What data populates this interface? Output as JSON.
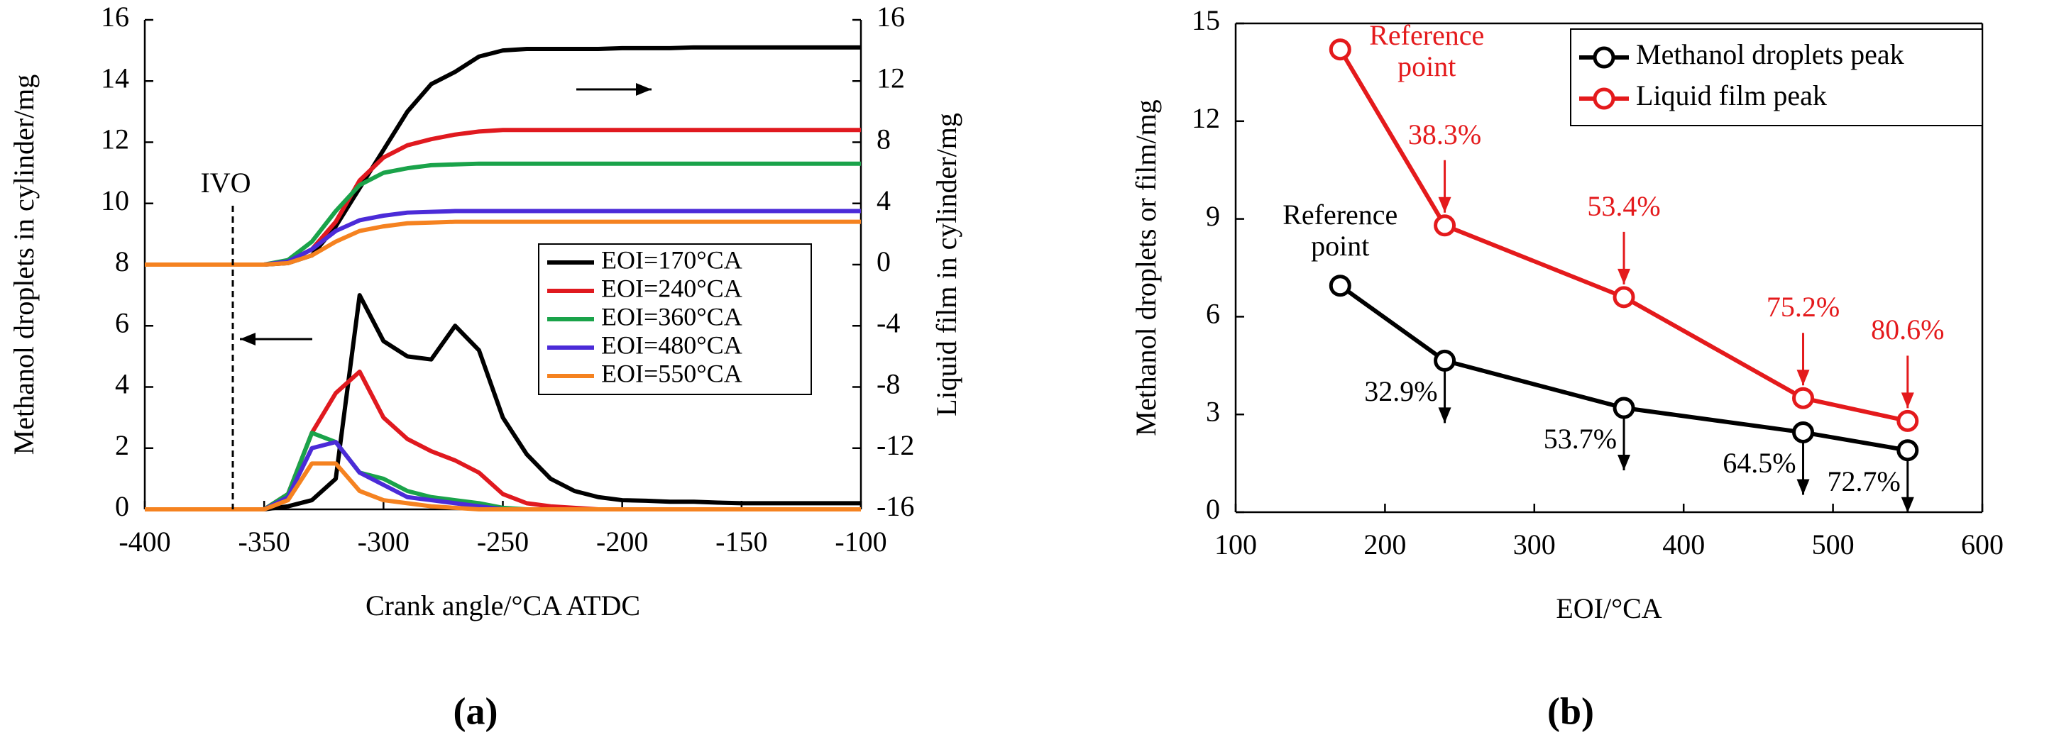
{
  "chart_data": [
    {
      "type": "line",
      "caption": "(a)",
      "x_label": "Crank angle/°CA ATDC",
      "y_label": "Methanol droplets in cylinder/mg",
      "y2_label": "Liquid film in cylinder/mg",
      "annotations": [
        "IVO"
      ],
      "x": [
        -400,
        -390,
        -380,
        -370,
        -360,
        -350,
        -340,
        -330,
        -320,
        -310,
        -300,
        -290,
        -280,
        -270,
        -260,
        -250,
        -240,
        -230,
        -220,
        -210,
        -200,
        -190,
        -180,
        -170,
        -160,
        -150,
        -140,
        -130,
        -120,
        -110,
        -100
      ],
      "xlim": [
        -400,
        -100
      ],
      "xticks": [
        -400,
        -350,
        -300,
        -250,
        -200,
        -150,
        -100
      ],
      "ylim": [
        0,
        16
      ],
      "yticks": [
        0,
        2,
        4,
        6,
        8,
        10,
        12,
        14,
        16
      ],
      "y2lim": [
        -16,
        16
      ],
      "y2ticks": [
        -16,
        -12,
        -8,
        -4,
        0,
        4,
        8,
        12,
        16
      ],
      "legend": "center right",
      "series": [
        {
          "name": "EOI=170°CA",
          "color": "#000000",
          "values": [
            0,
            0,
            0,
            0,
            0,
            0,
            0.1,
            0.3,
            1,
            7,
            5.5,
            5,
            4.9,
            6,
            5.2,
            3,
            1.8,
            1,
            0.6,
            0.4,
            0.3,
            0.28,
            0.25,
            0.25,
            0.22,
            0.2,
            0.2,
            0.2,
            0.2,
            0.2,
            0.2
          ]
        },
        {
          "name": "EOI=240°CA",
          "color": "#e0191f",
          "values": [
            0,
            0,
            0,
            0,
            0,
            0,
            0.5,
            2.5,
            3.8,
            4.5,
            3,
            2.3,
            1.9,
            1.6,
            1.2,
            0.5,
            0.2,
            0.1,
            0.05,
            0,
            0,
            0,
            0,
            0,
            0,
            0,
            0,
            0,
            0,
            0,
            0
          ]
        },
        {
          "name": "EOI=360°CA",
          "color": "#1aa34a",
          "values": [
            0,
            0,
            0,
            0,
            0,
            0,
            0.5,
            2.5,
            2.2,
            1.2,
            1,
            0.6,
            0.4,
            0.3,
            0.2,
            0.05,
            0,
            0,
            0,
            0,
            0,
            0,
            0,
            0,
            0,
            0,
            0,
            0,
            0,
            0,
            0
          ]
        },
        {
          "name": "EOI=480°CA",
          "color": "#4b2bd8",
          "values": [
            0,
            0,
            0,
            0,
            0,
            0,
            0.4,
            2,
            2.2,
            1.2,
            0.8,
            0.4,
            0.3,
            0.2,
            0.1,
            0,
            0,
            0,
            0,
            0,
            0,
            0,
            0,
            0,
            0,
            0,
            0,
            0,
            0,
            0,
            0
          ]
        },
        {
          "name": "EOI=550°CA",
          "color": "#f58220",
          "values": [
            0,
            0,
            0,
            0,
            0,
            0,
            0.3,
            1.5,
            1.5,
            0.6,
            0.3,
            0.2,
            0.1,
            0.05,
            0,
            0,
            0,
            0,
            0,
            0,
            0,
            0,
            0,
            0,
            0,
            0,
            0,
            0,
            0,
            0,
            0
          ]
        },
        {
          "axis": "y2",
          "color": "#000000",
          "values": [
            0,
            0,
            0,
            0,
            0,
            0,
            0.1,
            0.6,
            2.5,
            5,
            7.5,
            10,
            11.8,
            12.6,
            13.6,
            14,
            14.1,
            14.1,
            14.1,
            14.1,
            14.15,
            14.15,
            14.15,
            14.2,
            14.2,
            14.2,
            14.2,
            14.2,
            14.2,
            14.2,
            14.2
          ]
        },
        {
          "axis": "y2",
          "color": "#e0191f",
          "values": [
            0,
            0,
            0,
            0,
            0,
            0,
            0.2,
            1,
            2.8,
            5.5,
            7,
            7.8,
            8.2,
            8.5,
            8.7,
            8.8,
            8.8,
            8.8,
            8.8,
            8.8,
            8.8,
            8.8,
            8.8,
            8.8,
            8.8,
            8.8,
            8.8,
            8.8,
            8.8,
            8.8,
            8.8
          ]
        },
        {
          "axis": "y2",
          "color": "#1aa34a",
          "values": [
            0,
            0,
            0,
            0,
            0,
            0,
            0.3,
            1.5,
            3.5,
            5.2,
            6,
            6.3,
            6.5,
            6.55,
            6.6,
            6.6,
            6.6,
            6.6,
            6.6,
            6.6,
            6.6,
            6.6,
            6.6,
            6.6,
            6.6,
            6.6,
            6.6,
            6.6,
            6.6,
            6.6,
            6.6
          ]
        },
        {
          "axis": "y2",
          "color": "#4b2bd8",
          "values": [
            0,
            0,
            0,
            0,
            0,
            0,
            0.2,
            1,
            2.2,
            2.9,
            3.2,
            3.4,
            3.45,
            3.5,
            3.5,
            3.5,
            3.5,
            3.5,
            3.5,
            3.5,
            3.5,
            3.5,
            3.5,
            3.5,
            3.5,
            3.5,
            3.5,
            3.5,
            3.5,
            3.5,
            3.5
          ]
        },
        {
          "axis": "y2",
          "color": "#f58220",
          "values": [
            0,
            0,
            0,
            0,
            0,
            0,
            0.1,
            0.6,
            1.5,
            2.2,
            2.5,
            2.7,
            2.75,
            2.8,
            2.8,
            2.8,
            2.8,
            2.8,
            2.8,
            2.8,
            2.8,
            2.8,
            2.8,
            2.8,
            2.8,
            2.8,
            2.8,
            2.8,
            2.8,
            2.8,
            2.8
          ]
        }
      ]
    },
    {
      "type": "line",
      "caption": "(b)",
      "x_label": "EOI/°CA",
      "y_label": "Methanol droplets or film/mg",
      "x": [
        170,
        240,
        360,
        480,
        550
      ],
      "xlim": [
        100,
        600
      ],
      "xticks": [
        100,
        200,
        300,
        400,
        500,
        600
      ],
      "ylim": [
        0,
        15
      ],
      "yticks": [
        0,
        3,
        6,
        9,
        12,
        15
      ],
      "legend": "upper right",
      "series": [
        {
          "name": "Methanol droplets peak",
          "color": "#000000",
          "values": [
            6.95,
            4.65,
            3.2,
            2.45,
            1.9
          ],
          "annotations": [
            "Reference point",
            "32.9%",
            "53.7%",
            "64.5%",
            "72.7%"
          ]
        },
        {
          "name": "Liquid film peak",
          "color": "#e41a1c",
          "values": [
            14.2,
            8.8,
            6.6,
            3.5,
            2.8
          ],
          "annotations": [
            "Reference point",
            "38.3%",
            "53.4%",
            "75.2%",
            "80.6%"
          ]
        }
      ]
    }
  ]
}
